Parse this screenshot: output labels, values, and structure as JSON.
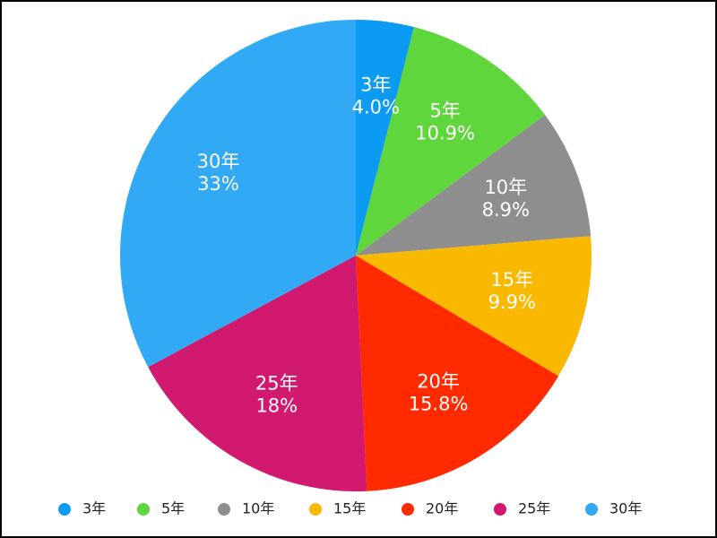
{
  "chart_data": {
    "type": "pie",
    "categories": [
      "3年",
      "5年",
      "10年",
      "15年",
      "20年",
      "25年",
      "30年"
    ],
    "values": [
      4.0,
      10.9,
      8.9,
      9.9,
      15.8,
      18,
      33
    ],
    "value_labels": [
      "4.0%",
      "10.9%",
      "8.9%",
      "9.9%",
      "15.8%",
      "18%",
      "33%"
    ],
    "colors": [
      "#0c9bf3",
      "#5fd63b",
      "#8e8e8e",
      "#f8b900",
      "#ff2a00",
      "#d0196f",
      "#32a9f5"
    ],
    "legend": "bottom"
  }
}
